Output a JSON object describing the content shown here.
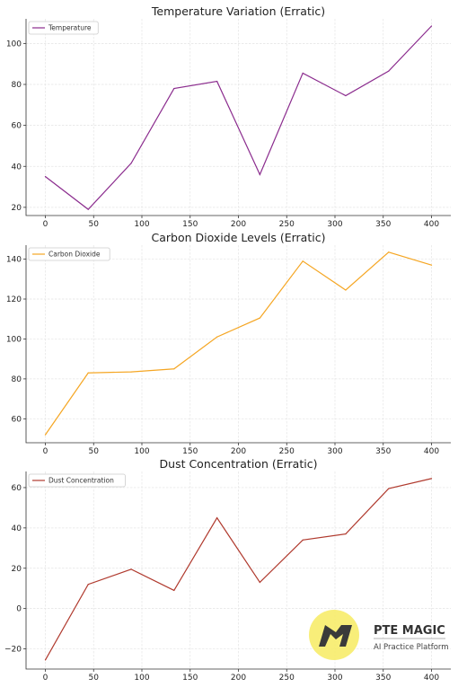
{
  "chart_data": [
    {
      "type": "line",
      "title": "Temperature Variation (Erratic)",
      "x": [
        0,
        44.4,
        88.9,
        133.3,
        177.8,
        222.2,
        266.7,
        311.1,
        355.6,
        400
      ],
      "series": [
        {
          "name": "Temperature",
          "color": "#8b2c8e",
          "values": [
            35,
            19,
            41.5,
            78,
            81.5,
            36,
            85.5,
            74.5,
            86.5,
            108.5
          ]
        }
      ],
      "xticks": [
        0,
        50,
        100,
        150,
        200,
        250,
        300,
        350,
        400
      ],
      "yticks": [
        20,
        40,
        60,
        80,
        100
      ],
      "xlim": [
        -20,
        420
      ],
      "ylim": [
        16,
        112
      ],
      "grid": true,
      "legend": "top-left"
    },
    {
      "type": "line",
      "title": "Carbon Dioxide Levels (Erratic)",
      "x": [
        0,
        44.4,
        88.9,
        133.3,
        177.8,
        222.2,
        266.7,
        311.1,
        355.6,
        400
      ],
      "series": [
        {
          "name": "Carbon Dioxide",
          "color": "#f5a623",
          "values": [
            52,
            83,
            83.5,
            85,
            101,
            110.5,
            139,
            124.5,
            143.5,
            137
          ]
        }
      ],
      "xticks": [
        0,
        50,
        100,
        150,
        200,
        250,
        300,
        350,
        400
      ],
      "yticks": [
        60,
        80,
        100,
        120,
        140
      ],
      "xlim": [
        -20,
        420
      ],
      "ylim": [
        48,
        147
      ],
      "grid": true,
      "legend": "top-left"
    },
    {
      "type": "line",
      "title": "Dust Concentration (Erratic)",
      "x": [
        0,
        44.4,
        88.9,
        133.3,
        177.8,
        222.2,
        266.7,
        311.1,
        355.6,
        400
      ],
      "series": [
        {
          "name": "Dust Concentration",
          "color": "#b03a2e",
          "values": [
            -25.5,
            12,
            19.5,
            9,
            45,
            13,
            34,
            37,
            59.5,
            64.5
          ]
        }
      ],
      "xticks": [
        0,
        50,
        100,
        150,
        200,
        250,
        300,
        350,
        400
      ],
      "yticks": [
        -20,
        0,
        20,
        40,
        60
      ],
      "xlim": [
        -20,
        420
      ],
      "ylim": [
        -30,
        68
      ],
      "grid": true,
      "legend": "top-left"
    }
  ],
  "watermark": {
    "title": "PTE MAGIC",
    "subtitle": "AI Practice Platform",
    "color": "#f7ec6a"
  }
}
